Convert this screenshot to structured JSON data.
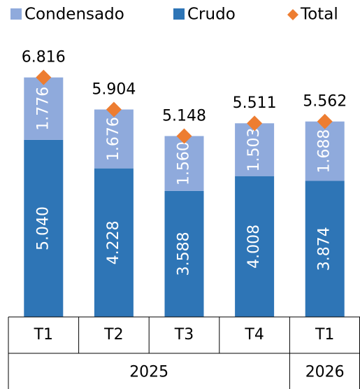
{
  "chart_data": {
    "type": "stacked_bar",
    "categories": [
      "T1",
      "T2",
      "T3",
      "T4",
      "T1"
    ],
    "groups": [
      {
        "label": "2025",
        "span": 4
      },
      {
        "label": "2026",
        "span": 1
      }
    ],
    "series": [
      {
        "name": "Crudo",
        "color": "#2e75b6",
        "values": [
          5.04,
          4.228,
          3.588,
          4.008,
          3.874
        ],
        "value_labels": [
          "5.040",
          "4.228",
          "3.588",
          "4.008",
          "3.874"
        ]
      },
      {
        "name": "Condensado",
        "color": "#8faadc",
        "values": [
          1.776,
          1.676,
          1.56,
          1.503,
          1.688
        ],
        "value_labels": [
          "1.776",
          "1.676",
          "1.560",
          "1.503",
          "1.688"
        ]
      }
    ],
    "total": {
      "name": "Total",
      "color": "#ed7d31",
      "values": [
        6.816,
        5.904,
        5.148,
        5.511,
        5.562
      ],
      "value_labels": [
        "6.816",
        "5.904",
        "5.148",
        "5.511",
        "5.562"
      ]
    },
    "legend_order": [
      1,
      0
    ],
    "ylim": [
      0,
      9
    ]
  }
}
